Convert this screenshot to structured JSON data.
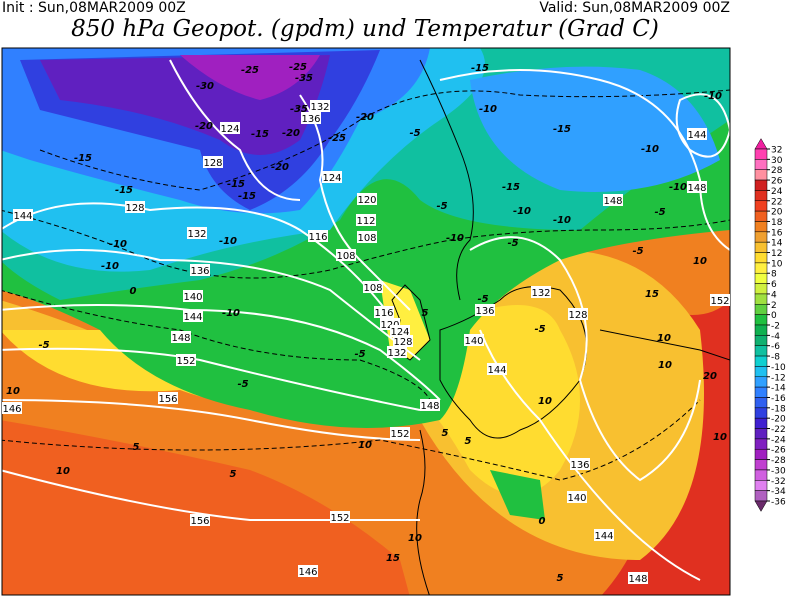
{
  "header": {
    "init": "Init : Sun,08MAR2009  00Z",
    "valid": "Valid: Sun,08MAR2009  00Z",
    "title": "850 hPa Geopot. (gpdm) und Temperatur (Grad C)"
  },
  "colorbar": {
    "values": [
      32,
      30,
      28,
      26,
      24,
      22,
      20,
      18,
      16,
      14,
      12,
      10,
      8,
      6,
      4,
      2,
      0,
      -2,
      -4,
      -6,
      -8,
      -10,
      -12,
      -14,
      -16,
      -18,
      -20,
      -22,
      -24,
      -26,
      -28,
      -30,
      -32,
      -34,
      -36
    ],
    "colors": [
      "#f020a0",
      "#ff40b0",
      "#ff70c0",
      "#ff90a0",
      "#d02020",
      "#e03020",
      "#f04020",
      "#f06020",
      "#f08020",
      "#f0a030",
      "#f8c030",
      "#ffdc30",
      "#ffef40",
      "#f0ff40",
      "#d0f040",
      "#a0e040",
      "#60d040",
      "#20c040",
      "#10b050",
      "#10b070",
      "#10c0a0",
      "#10d0d0",
      "#20c0f0",
      "#30a0ff",
      "#3080ff",
      "#3060f0",
      "#3040e0",
      "#4020d0",
      "#6020c0",
      "#8020c0",
      "#a020c0",
      "#c040d0",
      "#d060e0",
      "#e080f0",
      "#b060c0",
      "#6a2a6a"
    ]
  },
  "geopotential_labels": [
    "124",
    "128",
    "132",
    "136",
    "128",
    "132",
    "136",
    "140",
    "144",
    "148",
    "152",
    "156",
    "144",
    "146",
    "156",
    "152",
    "146",
    "148",
    "144",
    "140",
    "136",
    "152",
    "148",
    "144",
    "140",
    "136",
    "132",
    "128",
    "124",
    "120",
    "112",
    "108",
    "108",
    "108",
    "116",
    "120",
    "124",
    "128",
    "132",
    "116",
    "144",
    "148",
    "148",
    "152"
  ],
  "temperature_labels": [
    "-30",
    "-25",
    "-25",
    "-35",
    "-35",
    "-20",
    "-15",
    "-20",
    "-25",
    "-20",
    "-15",
    "-15",
    "-15",
    "-15",
    "-10",
    "-10",
    "-10",
    "-5",
    "-5",
    "-10",
    "-5",
    "-20",
    "-15",
    "-10",
    "-15",
    "-10",
    "-10",
    "-10",
    "-10",
    "-15",
    "-10",
    "-5",
    "-5",
    "-5",
    "-5",
    "-10",
    "-5",
    "-5",
    "-5",
    "0",
    "5",
    "5",
    "10",
    "10",
    "10",
    "10",
    "15",
    "10",
    "15",
    "10",
    "10",
    "10",
    "20",
    "10",
    "5",
    "5",
    "0",
    "5",
    "5"
  ]
}
